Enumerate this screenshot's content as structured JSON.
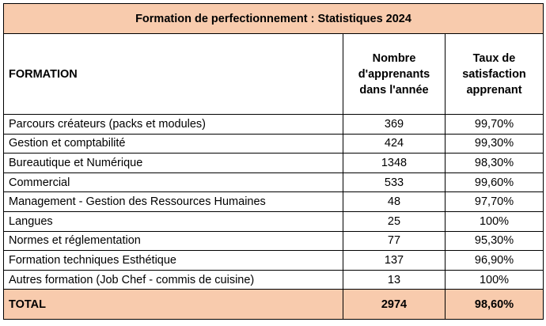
{
  "title": "Formation de perfectionnement : Statistiques 2024",
  "headers": {
    "formation": "FORMATION",
    "nombre": [
      "Nombre",
      "d'apprenants",
      "dans l'année"
    ],
    "taux": [
      "Taux de",
      "satisfaction",
      "apprenant"
    ]
  },
  "rows": [
    {
      "formation": "Parcours créateurs (packs et modules)",
      "nombre": "369",
      "taux": "99,70%"
    },
    {
      "formation": "Gestion et comptabilité",
      "nombre": "424",
      "taux": "99,30%"
    },
    {
      "formation": "Bureautique et Numérique",
      "nombre": "1348",
      "taux": "98,30%"
    },
    {
      "formation": "Commercial",
      "nombre": "533",
      "taux": "99,60%"
    },
    {
      "formation": "Management - Gestion des Ressources Humaines",
      "nombre": "48",
      "taux": "97,70%"
    },
    {
      "formation": "Langues",
      "nombre": "25",
      "taux": "100%"
    },
    {
      "formation": "Normes et réglementation",
      "nombre": "77",
      "taux": "95,30%"
    },
    {
      "formation": "Formation techniques Esthétique",
      "nombre": "137",
      "taux": "96,90%"
    },
    {
      "formation": "Autres formation (Job Chef - commis de cuisine)",
      "nombre": "13",
      "taux": "100%"
    }
  ],
  "total": {
    "label": "TOTAL",
    "nombre": "2974",
    "taux": "98,60%"
  },
  "colors": {
    "header_fill": "#f8cbad",
    "border": "#000000"
  }
}
